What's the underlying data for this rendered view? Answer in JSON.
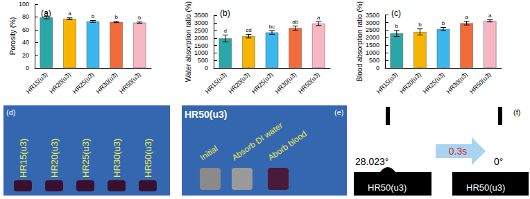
{
  "chart_data": [
    {
      "type": "bar",
      "title": "(a)",
      "y_label": "Porosity (%)",
      "categories": [
        "HR15(u3)",
        "HR20(u3)",
        "HR25(u3)",
        "HR30(u3)",
        "HR50(u3)"
      ],
      "values": [
        79,
        77,
        73,
        72,
        71
      ],
      "errors": [
        2,
        1.5,
        1.5,
        1,
        1
      ],
      "significance": [
        "a",
        "a",
        "b",
        "b",
        "b"
      ],
      "colors": [
        "#2aa7a9",
        "#f7b500",
        "#3ab8ee",
        "#f26b3a",
        "#f7b6c4"
      ],
      "ylim": [
        0,
        100
      ],
      "yticks": [
        0,
        20,
        40,
        60,
        80,
        100
      ]
    },
    {
      "type": "bar",
      "title": "(b)",
      "y_label": "Water absorption ratio (%)",
      "categories": [
        "HR15(u3)",
        "HR20(u3)",
        "HR25(u3)",
        "HR30(u3)",
        "HR50(u3)"
      ],
      "values": [
        1970,
        2120,
        2370,
        2660,
        2960
      ],
      "errors": [
        230,
        120,
        120,
        140,
        130
      ],
      "significance": [
        "d",
        "cd",
        "bc",
        "ab",
        "a"
      ],
      "colors": [
        "#2aa7a9",
        "#f7b500",
        "#3ab8ee",
        "#f26b3a",
        "#f7b6c4"
      ],
      "ylim": [
        0,
        3500
      ],
      "yticks": [
        0,
        500,
        1000,
        1500,
        2000,
        2500,
        3000,
        3500
      ]
    },
    {
      "type": "bar",
      "title": "(c)",
      "y_label": "Blood absorption ratio (%)",
      "categories": [
        "HR15(u3)",
        "HR20(u3)",
        "HR25(u3)",
        "HR30(u3)",
        "HR50(u3)"
      ],
      "values": [
        2280,
        2380,
        2570,
        2960,
        3110
      ],
      "errors": [
        200,
        200,
        110,
        120,
        70
      ],
      "significance": [
        "b",
        "b",
        "b",
        "a",
        "a"
      ],
      "colors": [
        "#2aa7a9",
        "#f7b500",
        "#3ab8ee",
        "#f26b3a",
        "#f7b6c4"
      ],
      "ylim": [
        0,
        3500
      ],
      "yticks": [
        0,
        500,
        1000,
        1500,
        2000,
        2500,
        3000,
        3500
      ]
    }
  ],
  "photo_panels": [
    {
      "label": "(d)",
      "texts": [
        "HR15(u3)",
        "HR20(u3)",
        "HR25(u3)",
        "HR30(u3)",
        "HR50(u3)"
      ]
    },
    {
      "label": "(e)",
      "title": "HR50(u3)",
      "texts": [
        "Initial",
        "Absorb DI water",
        "Aborb blood"
      ]
    },
    {
      "label": "(f)",
      "before": {
        "sample": "HR50(u3)",
        "angle": "28.023°"
      },
      "time": "0.3s",
      "after": {
        "sample": "HR50(u3)",
        "angle": "0°"
      }
    }
  ]
}
